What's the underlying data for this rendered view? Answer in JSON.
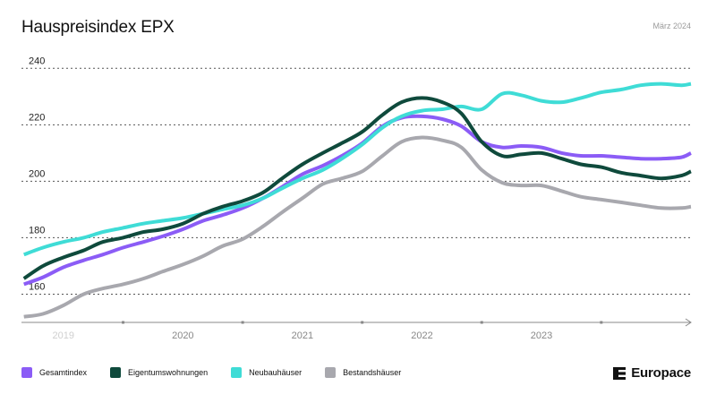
{
  "header": {
    "title": "Hauspreisindex EPX",
    "date": "März 2024"
  },
  "brand": {
    "name": "Europace"
  },
  "chart_data": {
    "type": "line",
    "title": "Hauspreisindex EPX",
    "ylim": [
      150,
      242
    ],
    "yticks": [
      160,
      180,
      200,
      220,
      240
    ],
    "xlim": [
      2018.65,
      2024.25
    ],
    "xticks": [
      {
        "label": "2019",
        "x": 2019.0
      },
      {
        "label": "2020",
        "x": 2020.0
      },
      {
        "label": "2021",
        "x": 2021.0
      },
      {
        "label": "2022",
        "x": 2022.0
      },
      {
        "label": "2023",
        "x": 2023.0
      }
    ],
    "x": [
      2018.67,
      2018.83,
      2019.0,
      2019.17,
      2019.33,
      2019.5,
      2019.67,
      2019.83,
      2020.0,
      2020.17,
      2020.33,
      2020.5,
      2020.67,
      2020.83,
      2021.0,
      2021.17,
      2021.33,
      2021.5,
      2021.67,
      2021.83,
      2022.0,
      2022.17,
      2022.33,
      2022.5,
      2022.67,
      2022.83,
      2023.0,
      2023.17,
      2023.33,
      2023.5,
      2023.67,
      2023.83,
      2024.0,
      2024.17,
      2024.25
    ],
    "series": [
      {
        "name": "Gesamtindex",
        "color": "#8b5cf6",
        "values": [
          163.5,
          166,
          169.5,
          172,
          174,
          176.5,
          178.5,
          180.5,
          183,
          186,
          188,
          190.5,
          194,
          198,
          202.5,
          205.5,
          209,
          213.5,
          219.5,
          222.5,
          223,
          222,
          219.5,
          214,
          212,
          212.5,
          212,
          210,
          209,
          209,
          208.5,
          208,
          208,
          208.5,
          210
        ]
      },
      {
        "name": "Eigentumswohnungen",
        "color": "#0f4a3c",
        "values": [
          165.5,
          170,
          173,
          175.5,
          178.5,
          180,
          182,
          183,
          185,
          188.5,
          191,
          193,
          196,
          201,
          206,
          210,
          213.5,
          217.5,
          223.5,
          228,
          229.5,
          228,
          224,
          214,
          209,
          209.5,
          210,
          208,
          206,
          205,
          203,
          202,
          201,
          202,
          203.5
        ]
      },
      {
        "name": "Neubauhäuser",
        "color": "#3fdcd6",
        "values": [
          174,
          176.5,
          178.5,
          180,
          182,
          183.5,
          185,
          186,
          187,
          188.5,
          190,
          191.5,
          194,
          197.5,
          201,
          204,
          208,
          213,
          219,
          223,
          225,
          225.5,
          226.5,
          225.5,
          231,
          230.5,
          228.5,
          228,
          229.5,
          231.5,
          232.5,
          234,
          234.5,
          234,
          234.5
        ]
      },
      {
        "name": "Bestandshäuser",
        "color": "#a8a8ae",
        "values": [
          152,
          153,
          156,
          160,
          162,
          163.5,
          165.5,
          168,
          170.5,
          173.5,
          177,
          179.5,
          184,
          189,
          194,
          199,
          201,
          203.5,
          209,
          214,
          215.5,
          214.5,
          212,
          204,
          199.5,
          198.5,
          198.5,
          196.5,
          194.5,
          193.5,
          192.5,
          191.5,
          190.5,
          190.5,
          191
        ]
      }
    ],
    "legend": "bottom-left"
  }
}
